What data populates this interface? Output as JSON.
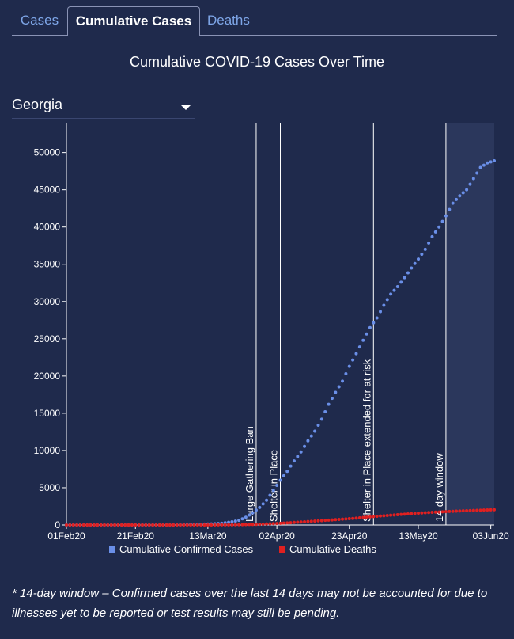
{
  "tabs": [
    {
      "label": "Cases",
      "active": false
    },
    {
      "label": "Cumulative Cases",
      "active": true
    },
    {
      "label": "Deaths",
      "active": false
    }
  ],
  "selector": {
    "value": "Georgia"
  },
  "footnote": "* 14-day window – Confirmed cases over the last 14 days may not be accounted for due to illnesses yet to be reported or test results may still be pending.",
  "colors": {
    "cases": "#6a8fe8",
    "deaths": "#e02020",
    "background": "#1f2a4c",
    "window": "#2b375c"
  },
  "chart_data": {
    "type": "scatter",
    "title": "Cumulative COVID-19 Cases Over Time",
    "xlabel": "",
    "ylabel": "",
    "x_range": [
      "2020-02-01",
      "2020-06-04"
    ],
    "x_ticks": [
      {
        "date": "2020-02-01",
        "label": "01Feb20"
      },
      {
        "date": "2020-02-21",
        "label": "21Feb20"
      },
      {
        "date": "2020-03-13",
        "label": "13Mar20"
      },
      {
        "date": "2020-04-02",
        "label": "02Apr20"
      },
      {
        "date": "2020-04-23",
        "label": "23Apr20"
      },
      {
        "date": "2020-05-13",
        "label": "13May20"
      },
      {
        "date": "2020-06-03",
        "label": "03Jun20"
      }
    ],
    "ylim": [
      0,
      54000
    ],
    "y_ticks": [
      0,
      5000,
      10000,
      15000,
      20000,
      25000,
      30000,
      35000,
      40000,
      45000,
      50000
    ],
    "grid": false,
    "legend_position": "bottom",
    "shaded_window": {
      "start": "2020-05-21",
      "end": "2020-06-04",
      "label": "14-day window"
    },
    "annotations": [
      {
        "date": "2020-03-27",
        "label": "Large Gathering Ban"
      },
      {
        "date": "2020-04-03",
        "label": "Shelter in Place"
      },
      {
        "date": "2020-04-30",
        "label": "Shelter in Place extended for at risk"
      },
      {
        "date": "2020-05-21",
        "label": "14-day window"
      }
    ],
    "series": [
      {
        "name": "Cumulative Confirmed Cases",
        "color": "#6a8fe8",
        "points": [
          [
            "2020-02-01",
            0
          ],
          [
            "2020-03-02",
            2
          ],
          [
            "2020-03-05",
            10
          ],
          [
            "2020-03-08",
            50
          ],
          [
            "2020-03-11",
            100
          ],
          [
            "2020-03-14",
            150
          ],
          [
            "2020-03-17",
            230
          ],
          [
            "2020-03-20",
            420
          ],
          [
            "2020-03-22",
            620
          ],
          [
            "2020-03-24",
            1030
          ],
          [
            "2020-03-26",
            1640
          ],
          [
            "2020-03-28",
            2350
          ],
          [
            "2020-03-30",
            3320
          ],
          [
            "2020-04-01",
            4640
          ],
          [
            "2020-04-03",
            6000
          ],
          [
            "2020-04-05",
            7200
          ],
          [
            "2020-04-07",
            8600
          ],
          [
            "2020-04-09",
            9800
          ],
          [
            "2020-04-11",
            11300
          ],
          [
            "2020-04-13",
            12600
          ],
          [
            "2020-04-15",
            14200
          ],
          [
            "2020-04-17",
            16200
          ],
          [
            "2020-04-19",
            17800
          ],
          [
            "2020-04-21",
            19300
          ],
          [
            "2020-04-23",
            21300
          ],
          [
            "2020-04-25",
            23000
          ],
          [
            "2020-04-27",
            24800
          ],
          [
            "2020-04-29",
            26500
          ],
          [
            "2020-05-01",
            27800
          ],
          [
            "2020-05-03",
            29500
          ],
          [
            "2020-05-05",
            31000
          ],
          [
            "2020-05-07",
            32000
          ],
          [
            "2020-05-09",
            33200
          ],
          [
            "2020-05-11",
            34500
          ],
          [
            "2020-05-13",
            35700
          ],
          [
            "2020-05-15",
            37000
          ],
          [
            "2020-05-17",
            38700
          ],
          [
            "2020-05-19",
            40000
          ],
          [
            "2020-05-21",
            41500
          ],
          [
            "2020-05-23",
            43200
          ],
          [
            "2020-05-25",
            44200
          ],
          [
            "2020-05-27",
            45000
          ],
          [
            "2020-05-29",
            46500
          ],
          [
            "2020-05-31",
            48000
          ],
          [
            "2020-06-02",
            48600
          ],
          [
            "2020-06-04",
            48900
          ]
        ]
      },
      {
        "name": "Cumulative Deaths",
        "color": "#e02020",
        "points": [
          [
            "2020-02-01",
            0
          ],
          [
            "2020-03-13",
            1
          ],
          [
            "2020-03-20",
            15
          ],
          [
            "2020-03-27",
            80
          ],
          [
            "2020-04-03",
            220
          ],
          [
            "2020-04-10",
            430
          ],
          [
            "2020-04-17",
            650
          ],
          [
            "2020-04-24",
            880
          ],
          [
            "2020-05-01",
            1170
          ],
          [
            "2020-05-08",
            1420
          ],
          [
            "2020-05-15",
            1650
          ],
          [
            "2020-05-22",
            1820
          ],
          [
            "2020-05-29",
            1950
          ],
          [
            "2020-06-04",
            2050
          ]
        ]
      }
    ]
  }
}
